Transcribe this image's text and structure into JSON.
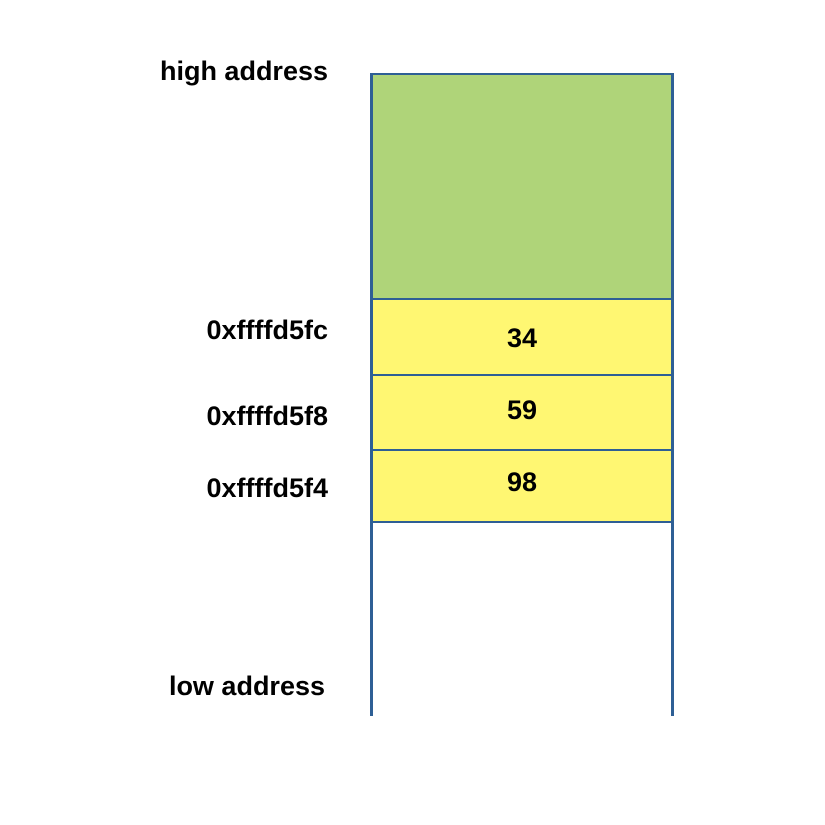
{
  "labels": {
    "high": "high address",
    "low": "low address"
  },
  "cells": [
    {
      "address": "0xffffd5fc",
      "value": "34"
    },
    {
      "address": "0xffffd5f8",
      "value": "59"
    },
    {
      "address": "0xffffd5f4",
      "value": "98"
    }
  ],
  "colors": {
    "occupied_region": "#afd479",
    "value_cell": "#fff772",
    "border": "#2e5f95"
  }
}
